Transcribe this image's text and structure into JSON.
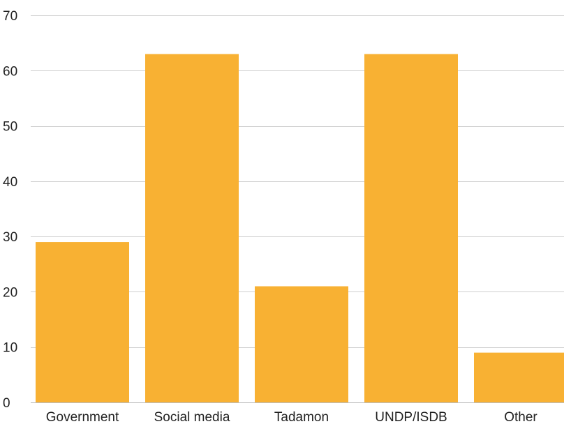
{
  "chart_data": {
    "type": "bar",
    "title": "",
    "xlabel": "",
    "ylabel": "",
    "categories": [
      "Government",
      "Social media",
      "Tadamon",
      "UNDP/ISDB",
      "Other"
    ],
    "values": [
      29,
      63,
      21,
      63,
      9
    ],
    "ylim": [
      0,
      70
    ],
    "yticks": [
      0,
      10,
      20,
      30,
      40,
      50,
      60,
      70
    ],
    "grid": true,
    "bar_color": "#F8B133"
  }
}
